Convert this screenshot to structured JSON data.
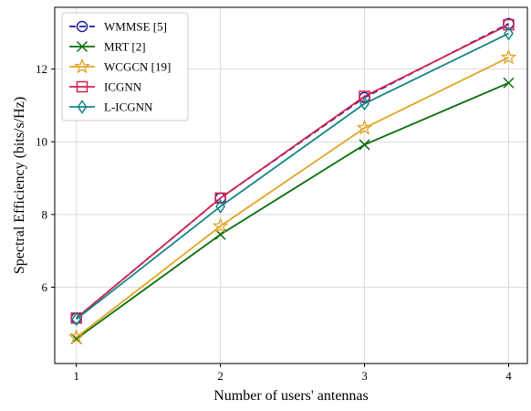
{
  "chart_data": {
    "type": "line",
    "title": "",
    "xlabel": "Number of users' antennas",
    "ylabel": "Spectral Efficiency (bits/s/Hz)",
    "x": [
      1,
      2,
      3,
      4
    ],
    "x_ticks": [
      "1",
      "2",
      "3",
      "4"
    ],
    "y_ticks": [
      "6",
      "8",
      "10",
      "12"
    ],
    "xlim": [
      0.85,
      4.13
    ],
    "ylim": [
      3.9,
      13.7
    ],
    "grid": true,
    "legend_position": "top-left",
    "series": [
      {
        "name": "WMMSE [5]",
        "values": [
          5.15,
          8.45,
          11.22,
          13.25
        ],
        "color": "#1f1fa3",
        "marker": "circle",
        "dashed": true
      },
      {
        "name": "MRT [2]",
        "values": [
          4.58,
          7.45,
          9.92,
          11.62
        ],
        "color": "#0a6e0a",
        "marker": "x",
        "dashed": false
      },
      {
        "name": "WCGCN [19]",
        "values": [
          4.62,
          7.68,
          10.38,
          12.32
        ],
        "color": "#e0a526",
        "marker": "star",
        "dashed": false
      },
      {
        "name": "ICGNN",
        "values": [
          5.15,
          8.45,
          11.25,
          13.22
        ],
        "color": "#d0244e",
        "marker": "square",
        "dashed": false
      },
      {
        "name": "L-ICGNN",
        "values": [
          5.12,
          8.22,
          11.05,
          12.98
        ],
        "color": "#16868a",
        "marker": "diamond",
        "dashed": false
      }
    ]
  }
}
